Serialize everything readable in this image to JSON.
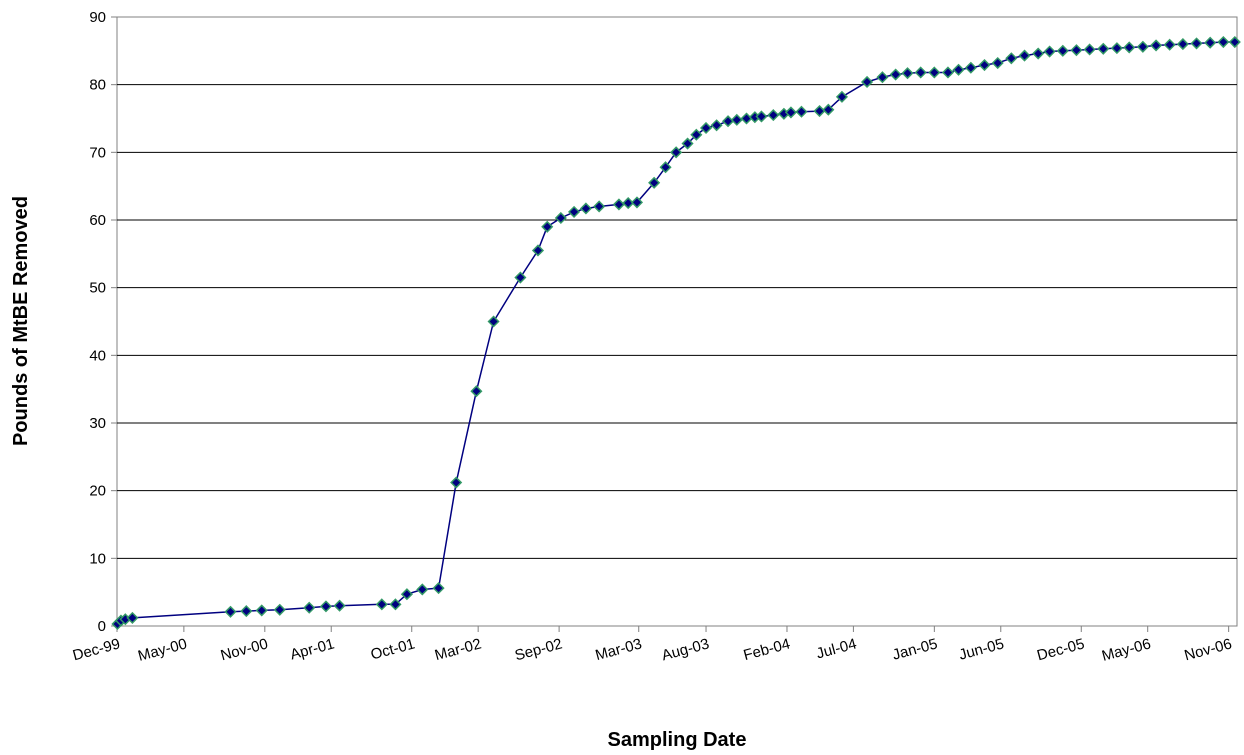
{
  "chart_data": {
    "type": "line",
    "title": "",
    "xlabel": "Sampling Date",
    "ylabel": "Pounds of MtBE Removed",
    "ylim": [
      0,
      90
    ],
    "yticks": [
      0,
      10,
      20,
      30,
      40,
      50,
      60,
      70,
      80,
      90
    ],
    "xlim": [
      "1999-12-01",
      "2006-11-20"
    ],
    "xtick_labels": [
      "Dec-99",
      "May-00",
      "Nov-00",
      "Apr-01",
      "Oct-01",
      "Mar-02",
      "Sep-02",
      "Mar-03",
      "Aug-03",
      "Feb-04",
      "Jul-04",
      "Jan-05",
      "Jun-05",
      "Dec-05",
      "May-06",
      "Nov-06"
    ],
    "xtick_dates": [
      "1999-12-01",
      "2000-05-01",
      "2000-11-01",
      "2001-04-01",
      "2001-10-01",
      "2002-03-01",
      "2002-09-01",
      "2003-03-01",
      "2003-08-01",
      "2004-02-01",
      "2004-07-01",
      "2005-01-01",
      "2005-06-01",
      "2005-12-01",
      "2006-05-01",
      "2006-11-01"
    ],
    "grid": "horizontal",
    "marker": "diamond",
    "colors": {
      "line": "#000080",
      "marker_fill": "#000080",
      "marker_edge": "#339966"
    },
    "series": [
      {
        "name": "",
        "points": [
          [
            "1999-12-02",
            0.3
          ],
          [
            "1999-12-10",
            0.8
          ],
          [
            "1999-12-20",
            1.0
          ],
          [
            "2000-01-05",
            1.2
          ],
          [
            "2000-08-15",
            2.1
          ],
          [
            "2000-09-20",
            2.2
          ],
          [
            "2000-10-25",
            2.3
          ],
          [
            "2000-12-05",
            2.4
          ],
          [
            "2001-02-10",
            2.7
          ],
          [
            "2001-03-20",
            2.9
          ],
          [
            "2001-04-20",
            3.0
          ],
          [
            "2001-07-25",
            3.2
          ],
          [
            "2001-08-25",
            3.2
          ],
          [
            "2001-09-20",
            4.7
          ],
          [
            "2001-10-25",
            5.4
          ],
          [
            "2001-12-01",
            5.6
          ],
          [
            "2002-01-10",
            21.2
          ],
          [
            "2002-02-25",
            34.7
          ],
          [
            "2002-04-05",
            45.0
          ],
          [
            "2002-06-05",
            51.5
          ],
          [
            "2002-07-15",
            55.5
          ],
          [
            "2002-08-05",
            59.0
          ],
          [
            "2002-09-05",
            60.3
          ],
          [
            "2002-10-05",
            61.2
          ],
          [
            "2002-11-01",
            61.7
          ],
          [
            "2002-12-01",
            62.0
          ],
          [
            "2003-01-15",
            62.3
          ],
          [
            "2003-02-05",
            62.5
          ],
          [
            "2003-02-25",
            62.6
          ],
          [
            "2003-04-05",
            65.5
          ],
          [
            "2003-05-01",
            67.8
          ],
          [
            "2003-05-25",
            70.0
          ],
          [
            "2003-06-20",
            71.3
          ],
          [
            "2003-07-10",
            72.6
          ],
          [
            "2003-08-01",
            73.6
          ],
          [
            "2003-08-25",
            74.0
          ],
          [
            "2003-09-20",
            74.6
          ],
          [
            "2003-10-10",
            74.8
          ],
          [
            "2003-11-01",
            75.0
          ],
          [
            "2003-11-20",
            75.2
          ],
          [
            "2003-12-05",
            75.3
          ],
          [
            "2004-01-01",
            75.5
          ],
          [
            "2004-01-25",
            75.7
          ],
          [
            "2004-02-10",
            75.9
          ],
          [
            "2004-03-05",
            76.0
          ],
          [
            "2004-04-15",
            76.1
          ],
          [
            "2004-05-05",
            76.3
          ],
          [
            "2004-06-05",
            78.2
          ],
          [
            "2004-08-01",
            80.4
          ],
          [
            "2004-09-05",
            81.1
          ],
          [
            "2004-10-05",
            81.5
          ],
          [
            "2004-11-01",
            81.7
          ],
          [
            "2004-12-01",
            81.8
          ],
          [
            "2005-01-01",
            81.8
          ],
          [
            "2005-02-01",
            81.8
          ],
          [
            "2005-02-25",
            82.2
          ],
          [
            "2005-03-25",
            82.5
          ],
          [
            "2005-04-25",
            82.9
          ],
          [
            "2005-05-25",
            83.2
          ],
          [
            "2005-06-25",
            83.9
          ],
          [
            "2005-07-25",
            84.3
          ],
          [
            "2005-08-25",
            84.6
          ],
          [
            "2005-09-20",
            84.9
          ],
          [
            "2005-10-20",
            85.0
          ],
          [
            "2005-11-20",
            85.1
          ],
          [
            "2005-12-20",
            85.2
          ],
          [
            "2006-01-20",
            85.3
          ],
          [
            "2006-02-20",
            85.4
          ],
          [
            "2006-03-20",
            85.5
          ],
          [
            "2006-04-20",
            85.6
          ],
          [
            "2006-05-20",
            85.8
          ],
          [
            "2006-06-20",
            85.9
          ],
          [
            "2006-07-20",
            86.0
          ],
          [
            "2006-08-20",
            86.1
          ],
          [
            "2006-09-20",
            86.2
          ],
          [
            "2006-10-20",
            86.3
          ],
          [
            "2006-11-15",
            86.3
          ]
        ]
      }
    ]
  }
}
